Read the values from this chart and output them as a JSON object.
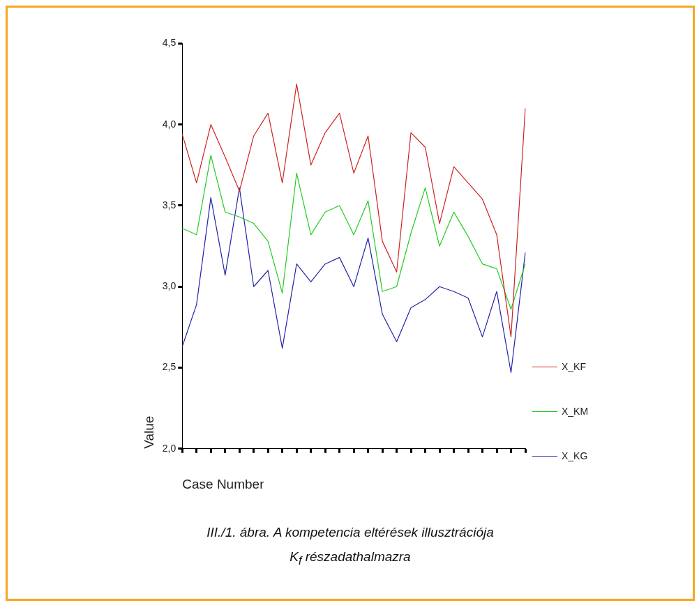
{
  "chart_data": {
    "type": "line",
    "xlabel": "Case Number",
    "ylabel": "Value",
    "categories": [
      null,
      null,
      null,
      null,
      null,
      null,
      null,
      null,
      null,
      null,
      null,
      null,
      null,
      null,
      null,
      null,
      null,
      null,
      null,
      null,
      null,
      null,
      null,
      null,
      null
    ],
    "series": [
      {
        "name": "X_KF",
        "color": "#cc2222",
        "values": [
          3.94,
          3.64,
          4.0,
          3.8,
          3.59,
          3.93,
          4.07,
          3.64,
          4.25,
          3.75,
          3.95,
          4.07,
          3.7,
          3.93,
          3.28,
          3.09,
          3.95,
          3.86,
          3.39,
          3.74,
          3.64,
          3.54,
          3.32,
          2.69,
          4.1
        ]
      },
      {
        "name": "X_KM",
        "color": "#22cc22",
        "values": [
          3.36,
          3.32,
          3.81,
          3.46,
          3.43,
          3.39,
          3.28,
          2.96,
          3.7,
          3.32,
          3.46,
          3.5,
          3.32,
          3.53,
          2.97,
          3.0,
          3.33,
          3.61,
          3.25,
          3.46,
          3.31,
          3.14,
          3.11,
          2.86,
          3.14
        ]
      },
      {
        "name": "X_KG",
        "color": "#2222aa",
        "values": [
          2.63,
          2.89,
          3.55,
          3.07,
          3.61,
          3.0,
          3.1,
          2.62,
          3.14,
          3.03,
          3.14,
          3.18,
          3.0,
          3.3,
          2.83,
          2.66,
          2.87,
          2.92,
          3.0,
          2.97,
          2.93,
          2.69,
          2.97,
          2.47,
          3.21
        ]
      }
    ],
    "ylim": [
      2.0,
      4.5
    ],
    "yticks": [
      {
        "value": 2.0,
        "label": "2,0"
      },
      {
        "value": 2.5,
        "label": "2,5"
      },
      {
        "value": 3.0,
        "label": "3,0"
      },
      {
        "value": 3.5,
        "label": "3,5"
      },
      {
        "value": 4.0,
        "label": "4,0"
      },
      {
        "value": 4.5,
        "label": "4,5"
      }
    ],
    "grid": false,
    "legend": "right",
    "marker": "none",
    "line_style": "solid",
    "annotations": [
      "III./1. ábra. A kompetencia eltérések illusztrációja",
      "K$_{f}$ részadathalmazra"
    ]
  }
}
